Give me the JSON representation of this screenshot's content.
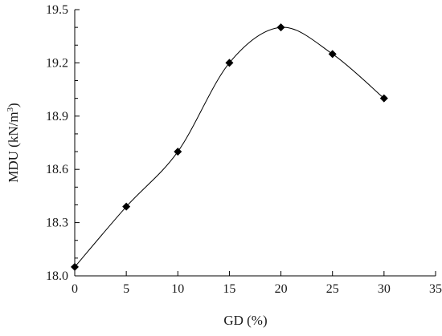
{
  "chart_data": {
    "type": "scatter",
    "title": "",
    "xlabel": "GD (%)",
    "ylabel_main": "MDU (kN/m",
    "ylabel_sup": "3",
    "ylabel_close": ")",
    "xlim": [
      0,
      35
    ],
    "ylim": [
      18.0,
      19.5
    ],
    "x_ticks": [
      0,
      5,
      10,
      15,
      20,
      25,
      30,
      35
    ],
    "x_tick_labels": [
      "0",
      "5",
      "10",
      "15",
      "20",
      "25",
      "30",
      "35"
    ],
    "y_ticks": [
      18.0,
      18.3,
      18.6,
      18.9,
      19.2,
      19.5
    ],
    "y_tick_labels": [
      "18.0",
      "18.3",
      "18.6",
      "18.9",
      "19.2",
      "19.5"
    ],
    "y_minor_step": 0.1,
    "grid": false,
    "legend": "none",
    "marker": "diamond",
    "line": "smooth",
    "series": [
      {
        "x": [
          0,
          5,
          10,
          15,
          20,
          25,
          30
        ],
        "y": [
          18.05,
          18.39,
          18.7,
          19.2,
          19.4,
          19.25,
          19.0
        ]
      }
    ],
    "colors": {
      "marker": "#000000",
      "line": "#000000",
      "axis": "#000000",
      "text": "#1a1a1a"
    }
  }
}
